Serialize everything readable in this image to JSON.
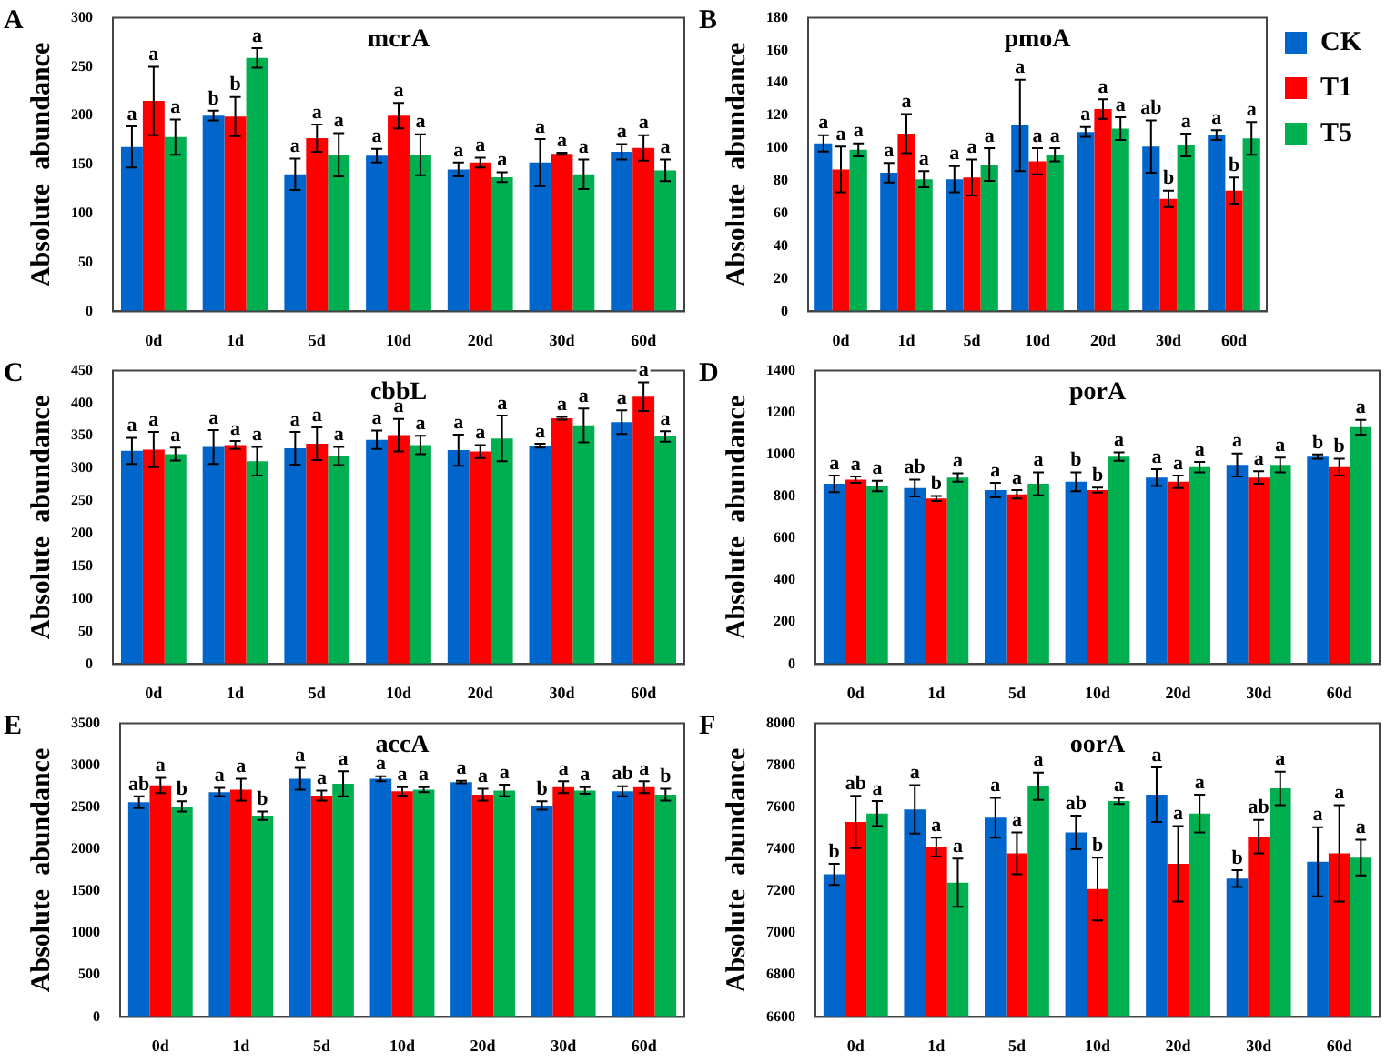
{
  "chart_data": [
    {
      "type": "bar",
      "title": "mcrA",
      "ylabel": "Absolute  abundance",
      "annotations": [
        "A"
      ],
      "categories": [
        "0d",
        "1d",
        "5d",
        "10d",
        "20d",
        "30d",
        "60d"
      ],
      "ylim": [
        0,
        300
      ],
      "yticks": [
        0,
        50,
        100,
        150,
        200,
        250,
        300
      ],
      "legend": false,
      "series": [
        {
          "color": "#0066cc",
          "values": [
            168,
            200,
            140,
            159,
            145,
            152,
            163
          ],
          "errors": [
            21,
            5,
            16,
            7,
            7,
            24,
            8
          ],
          "value_labels": [
            "a",
            "b",
            "a",
            "a",
            "a",
            "a",
            "a"
          ]
        },
        {
          "color": "#ff0000",
          "values": [
            215,
            199,
            177,
            200,
            152,
            161,
            167
          ],
          "errors": [
            35,
            20,
            14,
            13,
            5,
            1,
            13
          ],
          "value_labels": [
            "a",
            "b",
            "a",
            "a",
            "a",
            "a",
            "a"
          ]
        },
        {
          "color": "#00b050",
          "values": [
            178,
            259,
            160,
            160,
            137,
            140,
            144
          ],
          "errors": [
            18,
            10,
            22,
            21,
            5,
            15,
            11
          ],
          "value_labels": [
            "a",
            "a",
            "a",
            "a",
            "a",
            "a",
            "a"
          ]
        }
      ]
    },
    {
      "type": "bar",
      "title": "pmoA",
      "ylabel": "Absolute  abundance",
      "annotations": [
        "B"
      ],
      "categories": [
        "0d",
        "1d",
        "5d",
        "10d",
        "20d",
        "30d",
        "60d"
      ],
      "ylim": [
        0,
        180
      ],
      "yticks": [
        0,
        20,
        40,
        60,
        80,
        100,
        120,
        140,
        160,
        180
      ],
      "legend": "top right",
      "series": [
        {
          "name": "CK",
          "color": "#0066cc",
          "values": [
            103,
            85,
            81,
            114,
            110,
            101,
            108
          ],
          "errors": [
            5,
            6,
            8,
            28,
            3,
            16,
            3
          ],
          "value_labels": [
            "a",
            "a",
            "a",
            "a",
            "a",
            "ab",
            "a"
          ]
        },
        {
          "name": "T1",
          "color": "#ff0000",
          "values": [
            87,
            109,
            82,
            92,
            124,
            69,
            74
          ],
          "errors": [
            14,
            12,
            11,
            8,
            6,
            5,
            8
          ],
          "value_labels": [
            "a",
            "a",
            "a",
            "a",
            "a",
            "b",
            "b"
          ]
        },
        {
          "name": "T5",
          "color": "#00b050",
          "values": [
            99,
            81,
            90,
            96,
            112,
            102,
            106
          ],
          "errors": [
            4,
            5,
            10,
            4,
            7,
            7,
            10
          ],
          "value_labels": [
            "a",
            "a",
            "a",
            "a",
            "a",
            "a",
            "a"
          ]
        }
      ]
    },
    {
      "type": "bar",
      "title": "cbbL",
      "ylabel": "Absolute  abundance",
      "annotations": [
        "C"
      ],
      "categories": [
        "0d",
        "1d",
        "5d",
        "10d",
        "20d",
        "30d",
        "60d"
      ],
      "ylim": [
        0,
        450
      ],
      "yticks": [
        0,
        50,
        100,
        150,
        200,
        250,
        300,
        350,
        400,
        450
      ],
      "legend": false,
      "series": [
        {
          "color": "#0066cc",
          "values": [
            327,
            333,
            331,
            344,
            328,
            335,
            371
          ],
          "errors": [
            20,
            26,
            25,
            14,
            24,
            3,
            18
          ],
          "value_labels": [
            "a",
            "a",
            "a",
            "a",
            "a",
            "a",
            "a"
          ]
        },
        {
          "color": "#ff0000",
          "values": [
            329,
            336,
            338,
            351,
            326,
            377,
            410
          ],
          "errors": [
            27,
            6,
            25,
            25,
            10,
            2,
            22
          ],
          "value_labels": [
            "a",
            "a",
            "a",
            "a",
            "a",
            "a",
            "a"
          ]
        },
        {
          "color": "#00b050",
          "values": [
            322,
            311,
            319,
            336,
            346,
            366,
            349
          ],
          "errors": [
            10,
            22,
            14,
            14,
            35,
            26,
            8
          ],
          "value_labels": [
            "a",
            "a",
            "a",
            "a",
            "a",
            "a",
            "a"
          ]
        }
      ]
    },
    {
      "type": "bar",
      "title": "porA",
      "ylabel": "Absolute  abundance",
      "annotations": [
        "D"
      ],
      "categories": [
        "0d",
        "1d",
        "5d",
        "10d",
        "20d",
        "30d",
        "60d"
      ],
      "ylim": [
        0,
        1400
      ],
      "yticks": [
        0,
        200,
        400,
        600,
        800,
        1000,
        1200,
        1400
      ],
      "legend": false,
      "series": [
        {
          "color": "#0066cc",
          "values": [
            860,
            840,
            830,
            870,
            890,
            950,
            990
          ],
          "errors": [
            40,
            40,
            35,
            45,
            40,
            55,
            10
          ],
          "value_labels": [
            "a",
            "ab",
            "a",
            "b",
            "a",
            "a",
            "b"
          ]
        },
        {
          "color": "#ff0000",
          "values": [
            880,
            790,
            810,
            830,
            870,
            890,
            940
          ],
          "errors": [
            15,
            12,
            20,
            12,
            30,
            30,
            40
          ],
          "value_labels": [
            "a",
            "b",
            "a",
            "b",
            "a",
            "a",
            "b"
          ]
        },
        {
          "color": "#00b050",
          "values": [
            850,
            890,
            860,
            990,
            940,
            950,
            1130
          ],
          "errors": [
            25,
            20,
            55,
            20,
            25,
            35,
            35
          ],
          "value_labels": [
            "a",
            "a",
            "a",
            "a",
            "a",
            "a",
            "a"
          ]
        }
      ]
    },
    {
      "type": "bar",
      "title": "accA",
      "ylabel": "Absolute  abundance",
      "annotations": [
        "E"
      ],
      "categories": [
        "0d",
        "1d",
        "5d",
        "10d",
        "20d",
        "30d",
        "60d"
      ],
      "ylim": [
        0,
        3500
      ],
      "yticks": [
        0,
        500,
        1000,
        1500,
        2000,
        2500,
        3000,
        3500
      ],
      "legend": false,
      "series": [
        {
          "color": "#0066cc",
          "values": [
            2560,
            2680,
            2840,
            2840,
            2800,
            2520,
            2690
          ],
          "errors": [
            70,
            50,
            130,
            30,
            15,
            50,
            60
          ],
          "value_labels": [
            "ab",
            "a",
            "a",
            "a",
            "a",
            "b",
            "ab"
          ]
        },
        {
          "color": "#ff0000",
          "values": [
            2760,
            2710,
            2640,
            2690,
            2650,
            2740,
            2740
          ],
          "errors": [
            90,
            130,
            60,
            50,
            70,
            70,
            70
          ],
          "value_labels": [
            "a",
            "a",
            "a",
            "a",
            "a",
            "a",
            "a"
          ]
        },
        {
          "color": "#00b050",
          "values": [
            2510,
            2400,
            2780,
            2710,
            2700,
            2700,
            2650
          ],
          "errors": [
            60,
            50,
            150,
            30,
            70,
            40,
            70
          ],
          "value_labels": [
            "b",
            "b",
            "a",
            "a",
            "a",
            "a",
            "b"
          ]
        }
      ]
    },
    {
      "type": "bar",
      "title": "oorA",
      "ylabel": "Absolute  abundance",
      "annotations": [
        "F"
      ],
      "categories": [
        "0d",
        "1d",
        "5d",
        "10d",
        "20d",
        "30d",
        "60d"
      ],
      "ylim": [
        6600,
        8000
      ],
      "yticks": [
        6600,
        6800,
        7000,
        7200,
        7400,
        7600,
        7800,
        8000
      ],
      "legend": false,
      "series": [
        {
          "color": "#0066cc",
          "values": [
            7280,
            7590,
            7550,
            7480,
            7660,
            7260,
            7340
          ],
          "errors": [
            50,
            115,
            95,
            80,
            130,
            40,
            165
          ],
          "value_labels": [
            "b",
            "a",
            "a",
            "ab",
            "a",
            "b",
            "a"
          ]
        },
        {
          "color": "#ff0000",
          "values": [
            7530,
            7410,
            7380,
            7210,
            7330,
            7460,
            7380
          ],
          "errors": [
            125,
            45,
            100,
            150,
            180,
            80,
            230
          ],
          "value_labels": [
            "ab",
            "a",
            "a",
            "b",
            "a",
            "ab",
            "a"
          ]
        },
        {
          "color": "#00b050",
          "values": [
            7570,
            7240,
            7700,
            7630,
            7570,
            7690,
            7360
          ],
          "errors": [
            60,
            115,
            65,
            15,
            90,
            80,
            85
          ],
          "value_labels": [
            "a",
            "a",
            "a",
            "a",
            "a",
            "a",
            "a"
          ]
        }
      ]
    }
  ]
}
